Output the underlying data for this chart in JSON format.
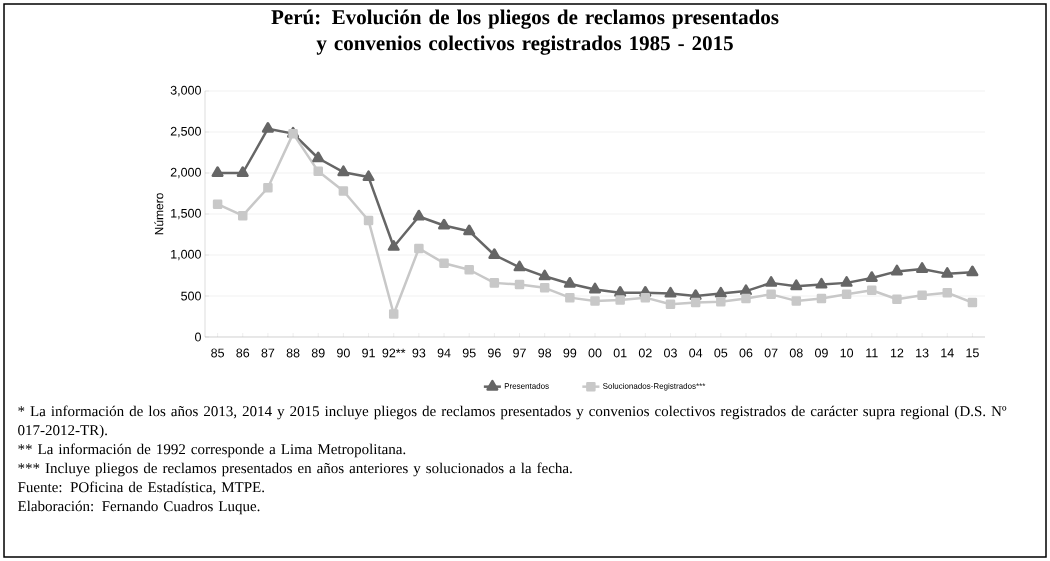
{
  "chart_data": {
    "type": "line",
    "title": "Perú: Evolución de los pliegos de reclamos presentados y convenios colectivos registrados 1985 - 2015",
    "ylabel": "Número",
    "categories": [
      "85",
      "86",
      "87",
      "88",
      "89",
      "90",
      "91",
      "92**",
      "93",
      "94",
      "95",
      "96",
      "97",
      "98",
      "99",
      "00",
      "01",
      "02",
      "03",
      "04",
      "05",
      "06",
      "07",
      "08",
      "09",
      "10",
      "11",
      "12",
      "13",
      "14",
      "15"
    ],
    "series": [
      {
        "name": "Presentados",
        "color": "#666666",
        "marker": "triangle",
        "values": [
          2000,
          2000,
          2540,
          2480,
          2180,
          2010,
          1950,
          1100,
          1470,
          1360,
          1290,
          1000,
          850,
          740,
          650,
          580,
          540,
          540,
          530,
          500,
          530,
          560,
          660,
          620,
          640,
          660,
          720,
          800,
          830,
          770,
          790
        ]
      },
      {
        "name": "Solucionados-Registrados***",
        "color": "#c8c8c8",
        "marker": "square",
        "values": [
          1620,
          1480,
          1820,
          2480,
          2020,
          1780,
          1420,
          280,
          1080,
          900,
          820,
          660,
          640,
          600,
          480,
          440,
          450,
          480,
          400,
          420,
          430,
          470,
          520,
          440,
          470,
          520,
          570,
          460,
          510,
          540,
          420
        ]
      }
    ],
    "ylim": [
      0,
      3000
    ],
    "yticks": [
      {
        "value": 0,
        "label": "0"
      },
      {
        "value": 500,
        "label": "500"
      },
      {
        "value": 1000,
        "label": "1,000"
      },
      {
        "value": 1500,
        "label": "1,500"
      },
      {
        "value": 2000,
        "label": "2,000"
      },
      {
        "value": 2500,
        "label": "2,500"
      },
      {
        "value": 3000,
        "label": "3,000"
      }
    ],
    "grid": "y",
    "legend": "bottom",
    "line_style": "solid",
    "annotations": [
      "* La información de los años 2013, 2014 y 2015 incluye pliegos de reclamos presentados y convenios colectivos registrados de carácter supra regional (D.S. Nº 017-2012-TR).",
      "** La información de 1992 corresponde a Lima Metropolitana.",
      "*** Incluye pliegos de reclamos presentados en años anteriores y solucionados a la fecha.",
      "Fuente: POficina de Estadística, MTPE.",
      "Elaboración: Fernando Cuadros Luque."
    ]
  }
}
